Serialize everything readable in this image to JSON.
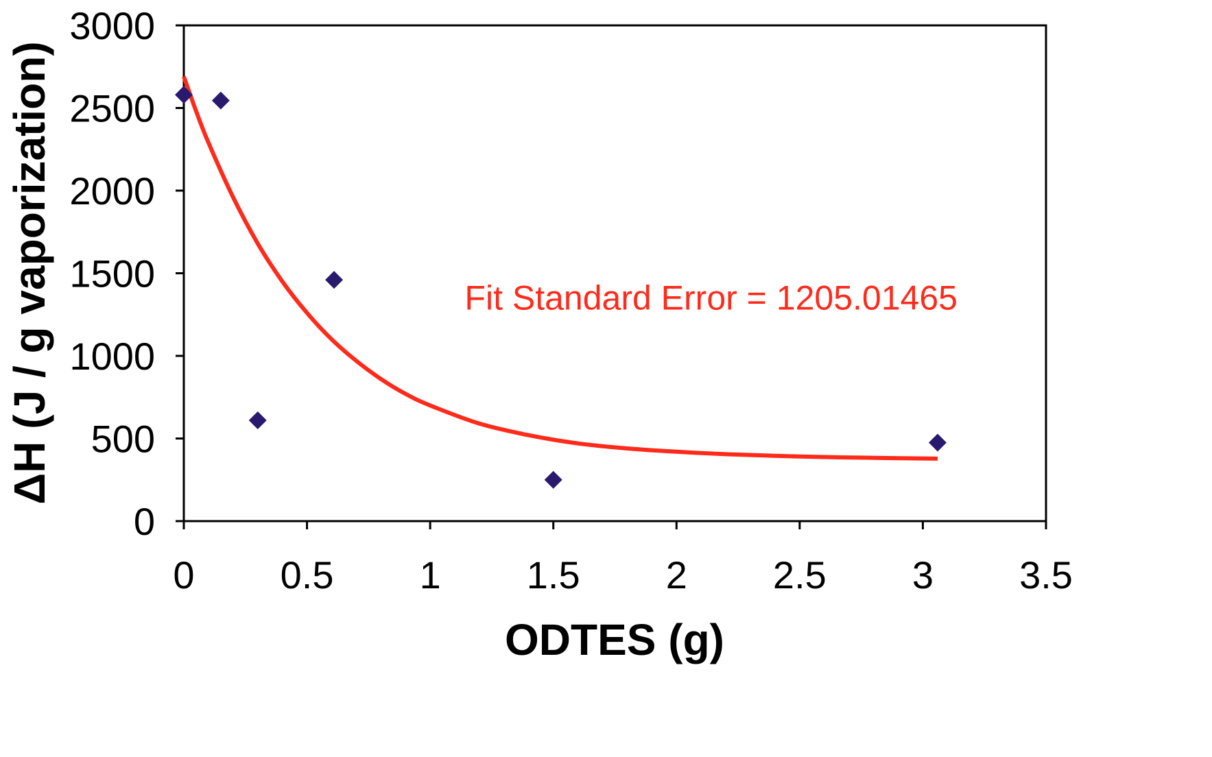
{
  "chart_data": {
    "type": "scatter",
    "title": "",
    "xlabel": "ODTES (g)",
    "ylabel": "ΔH (J / g vaporization)",
    "xlim": [
      0,
      3.5
    ],
    "ylim": [
      0,
      3000
    ],
    "x_ticks": [
      0,
      0.5,
      1,
      1.5,
      2,
      2.5,
      3,
      3.5
    ],
    "x_tick_labels": [
      "0",
      "0.5",
      "1",
      "1.5",
      "2",
      "2.5",
      "3",
      "3.5"
    ],
    "y_ticks": [
      0,
      500,
      1000,
      1500,
      2000,
      2500,
      3000
    ],
    "y_tick_labels": [
      "0",
      "500",
      "1000",
      "1500",
      "2000",
      "2500",
      "3000"
    ],
    "grid": false,
    "legend": "none",
    "series": [
      {
        "type": "scatter",
        "marker": "diamond",
        "color": "#2a1a6e",
        "points": [
          {
            "x": 0.0,
            "y": 2580
          },
          {
            "x": 0.15,
            "y": 2545
          },
          {
            "x": 0.3,
            "y": 610
          },
          {
            "x": 0.61,
            "y": 1460
          },
          {
            "x": 1.5,
            "y": 250
          },
          {
            "x": 3.06,
            "y": 475
          }
        ]
      },
      {
        "type": "line",
        "color": "#ff2a1a",
        "points": [
          {
            "x": 0.0,
            "y": 2690
          },
          {
            "x": 0.05,
            "y": 2480
          },
          {
            "x": 0.1,
            "y": 2290
          },
          {
            "x": 0.2,
            "y": 1960
          },
          {
            "x": 0.3,
            "y": 1680
          },
          {
            "x": 0.4,
            "y": 1450
          },
          {
            "x": 0.5,
            "y": 1260
          },
          {
            "x": 0.6,
            "y": 1100
          },
          {
            "x": 0.7,
            "y": 970
          },
          {
            "x": 0.8,
            "y": 860
          },
          {
            "x": 0.9,
            "y": 770
          },
          {
            "x": 1.0,
            "y": 700
          },
          {
            "x": 1.2,
            "y": 590
          },
          {
            "x": 1.4,
            "y": 520
          },
          {
            "x": 1.6,
            "y": 470
          },
          {
            "x": 1.8,
            "y": 440
          },
          {
            "x": 2.0,
            "y": 420
          },
          {
            "x": 2.2,
            "y": 405
          },
          {
            "x": 2.4,
            "y": 395
          },
          {
            "x": 2.6,
            "y": 388
          },
          {
            "x": 2.8,
            "y": 383
          },
          {
            "x": 3.06,
            "y": 378
          }
        ]
      }
    ],
    "annotations": [
      {
        "text": "Fit Standard Error = 1205.01465",
        "x": 1.14,
        "y": 1280,
        "color": "#ff2a1a"
      }
    ]
  }
}
